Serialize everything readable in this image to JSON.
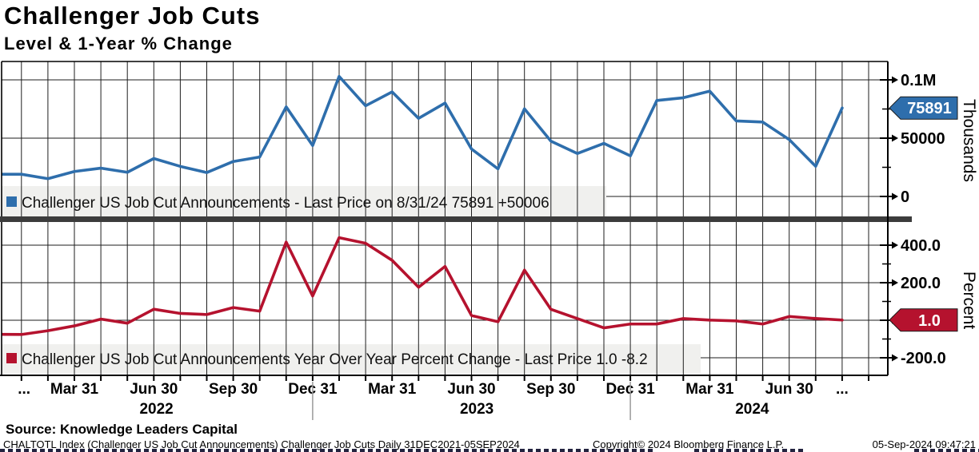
{
  "header": {
    "title": "Challenger Job Cuts",
    "subtitle": "Level & 1-Year % Change"
  },
  "chart_data": {
    "type": "line",
    "x": [
      "2021-12",
      "2022-01",
      "2022-02",
      "2022-03",
      "2022-04",
      "2022-05",
      "2022-06",
      "2022-07",
      "2022-08",
      "2022-09",
      "2022-10",
      "2022-11",
      "2022-12",
      "2023-01",
      "2023-02",
      "2023-03",
      "2023-04",
      "2023-05",
      "2023-06",
      "2023-07",
      "2023-08",
      "2023-09",
      "2023-10",
      "2023-11",
      "2023-12",
      "2024-01",
      "2024-02",
      "2024-03",
      "2024-04",
      "2024-05",
      "2024-06",
      "2024-07",
      "2024-08"
    ],
    "x_tick_labels": [
      {
        "label": "...",
        "mi": 1.1
      },
      {
        "label": "Mar 31",
        "mi": 3
      },
      {
        "label": "Jun 30",
        "mi": 6
      },
      {
        "label": "Sep 30",
        "mi": 9
      },
      {
        "label": "Dec 31",
        "mi": 12
      },
      {
        "label": "Mar 31",
        "mi": 15
      },
      {
        "label": "Jun 30",
        "mi": 18
      },
      {
        "label": "Sep 30",
        "mi": 21
      },
      {
        "label": "Dec 31",
        "mi": 24
      },
      {
        "label": "Mar 31",
        "mi": 27
      },
      {
        "label": "Jun 30",
        "mi": 30
      },
      {
        "label": "...",
        "mi": 32
      }
    ],
    "year_labels": [
      {
        "label": "2022",
        "mi": 6.1
      },
      {
        "label": "2023",
        "mi": 18.2
      },
      {
        "label": "2024",
        "mi": 28.6
      }
    ],
    "year_divider_mi": [
      12,
      24
    ],
    "panels": [
      {
        "id": "level",
        "ylabel": "Thousands",
        "legend": "Challenger US Job Cut Announcements - Last Price on 8/31/24 75891 +50006",
        "color": "#2E6EAC",
        "ytick_values": [
          100000,
          50000,
          0
        ],
        "ytick_labels": [
          "0.1M",
          "50000",
          "0"
        ],
        "minor_tick_values": [
          75000,
          25000
        ],
        "ylim": [
          0,
          116000
        ],
        "last_price": {
          "label": "75891",
          "value": 75891,
          "date": "8/31/24",
          "change": "+50006"
        },
        "series": [
          {
            "name": "Challenger US Job Cut Announcements",
            "values": [
              19052,
              19064,
              15245,
              21387,
              24286,
              20712,
              32517,
              25810,
              20485,
              29989,
              33843,
              76835,
              43651,
              102943,
              77770,
              89703,
              66995,
              80089,
              40709,
              23697,
              75151,
              47457,
              36836,
              45510,
              34817,
              82307,
              84638,
              90309,
              64789,
              63816,
              48786,
              25885,
              75891
            ]
          }
        ]
      },
      {
        "id": "yoy",
        "ylabel": "Percent",
        "legend": "Challenger US Job Cut Announcements Year Over Year Percent Change - Last Price 1.0  -8.2",
        "color": "#B5122E",
        "ytick_values": [
          400,
          200,
          0,
          -200
        ],
        "ytick_labels": [
          "400.0",
          "200.0",
          "",
          "-200.0"
        ],
        "minor_tick_values": [
          300,
          100,
          -100
        ],
        "ylim": [
          -290,
          520
        ],
        "last_price": {
          "label": "1.0",
          "value": 1.0,
          "change": "-8.2"
        },
        "series": [
          {
            "name": "Challenger US Job Cut Announcements Year Over Year Percent Change",
            "values": [
              -75.3,
              -76.0,
              -55.9,
              -30.1,
              6.0,
              -15.8,
              58.8,
              36.3,
              30.3,
              67.6,
              48.3,
              416.5,
              129.1,
              440.0,
              410.1,
              319.4,
              175.9,
              286.7,
              25.2,
              -8.2,
              266.9,
              58.2,
              8.8,
              -40.8,
              -20.2,
              -20.0,
              8.8,
              0.7,
              -3.3,
              -20.3,
              19.8,
              9.2,
              1.0
            ]
          }
        ]
      }
    ],
    "grid": true,
    "legend_position": "bottom-left-of-each-panel"
  },
  "footer": {
    "source": "Source: Knowledge Leaders Capital",
    "description": "CHALTOTL Index (Challenger US Job Cut Announcements) Challenger Job Cuts  Daily 31DEC2021-05SEP2024",
    "copyright": "Copyright© 2024 Bloomberg Finance L.P.",
    "datetime": "05-Sep-2024 09:47:21"
  },
  "colors": {
    "level_line": "#2E6EAC",
    "yoy_line": "#B5122E",
    "grid": "#1E1E1E",
    "separator": "#3C3C3C",
    "legend_bg": "#F0F0EE",
    "tag_text": "#FFFFFF"
  }
}
